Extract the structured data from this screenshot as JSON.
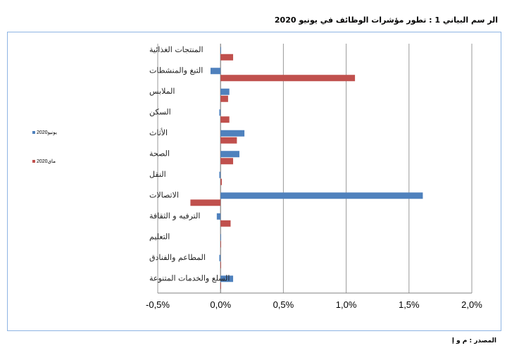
{
  "page": {
    "title": "الر سم البياني 1 : تطور مؤشرات الوظائف في يونيو 2020",
    "source": "المصدر : م و إ"
  },
  "chart_data": {
    "type": "bar",
    "orientation": "horizontal",
    "categories": [
      "المنتجات الغذائية",
      "التبغ والمنشطات",
      "الملابس",
      "السكن",
      "الأثاث",
      "الصحة",
      "النقل",
      "الاتصالات",
      "الترفيه و الثقافة",
      "التعليم",
      "المطاعم والفنادق",
      "السلع والخدمات المتنوعة"
    ],
    "series": [
      {
        "name": "يونيو2020",
        "color": "#4f81bd",
        "values": [
          0.0,
          -0.08,
          0.07,
          -0.01,
          0.19,
          0.15,
          -0.01,
          1.61,
          -0.03,
          0.0,
          -0.01,
          0.1
        ]
      },
      {
        "name": "ماي2020",
        "color": "#c0504d",
        "values": [
          0.1,
          1.07,
          0.06,
          0.07,
          0.13,
          0.1,
          0.01,
          -0.24,
          0.08,
          0.0,
          0.0,
          0.0
        ]
      }
    ],
    "xlim": [
      -0.5,
      2.0
    ],
    "xticks": [
      -0.5,
      0.0,
      0.5,
      1.0,
      1.5,
      2.0
    ],
    "xtick_labels": [
      "-0,5%",
      "0,0%",
      "0,5%",
      "1,0%",
      "1,5%",
      "2,0%"
    ],
    "grid": "vertical",
    "legend_position": "left"
  }
}
